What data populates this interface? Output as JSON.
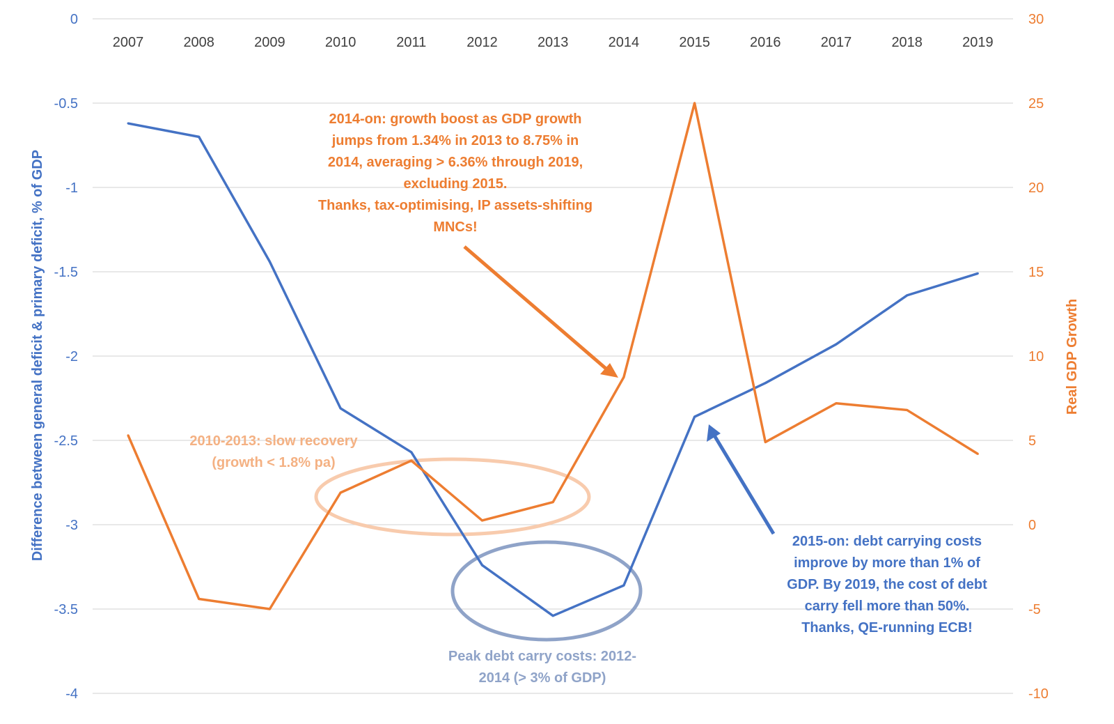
{
  "chart_data": {
    "type": "line",
    "categories": [
      "2007",
      "2008",
      "2009",
      "2010",
      "2011",
      "2012",
      "2013",
      "2014",
      "2015",
      "2016",
      "2017",
      "2018",
      "2019"
    ],
    "series": [
      {
        "axis": "left",
        "color": "#4472C4",
        "values": [
          -0.62,
          -0.7,
          -1.44,
          -2.31,
          -2.57,
          -3.24,
          -3.54,
          -3.36,
          -2.36,
          -2.16,
          -1.93,
          -1.64,
          -1.51
        ]
      },
      {
        "axis": "right",
        "color": "#ED7D31",
        "values": [
          5.3,
          -4.4,
          -5.0,
          1.9,
          3.8,
          0.25,
          1.34,
          8.75,
          25.0,
          4.9,
          7.2,
          6.8,
          4.2
        ]
      }
    ],
    "ylabel": "Difference between general deficit & primary deficit, % of GDP",
    "ylabel_right": "Real GDP Growth",
    "ylim": [
      -4,
      0
    ],
    "ylim_right": [
      -10,
      30
    ],
    "yticks": [
      "0",
      "-0.5",
      "-1",
      "-1.5",
      "-2",
      "-2.5",
      "-3",
      "-3.5",
      "-4"
    ],
    "yticks_right": [
      "30",
      "25",
      "20",
      "15",
      "10",
      "5",
      "0",
      "-5",
      "-10"
    ],
    "grid": true,
    "x_axis_position": "top",
    "annotations": {
      "growth": [
        "2014-on: growth boost as GDP growth",
        "jumps from 1.34% in 2013 to 8.75% in",
        "2014, averaging > 6.36% through 2019,",
        "excluding 2015.",
        "Thanks, tax-optimising, IP assets-shifting",
        "MNCs!"
      ],
      "slow": [
        "2010-2013: slow recovery",
        "(growth < 1.8% pa)"
      ],
      "peak": [
        "Peak debt carry costs: 2012-",
        "2014 (> 3% of GDP)"
      ],
      "debt": [
        "2015-on: debt carrying costs",
        "improve by more than 1% of",
        "GDP. By 2019, the cost of debt",
        "carry fell more than 50%.",
        "Thanks, QE-running ECB!"
      ]
    },
    "colors": {
      "blue": "#4472C4",
      "orange": "#ED7D31",
      "light_orange": "#F4B183",
      "grey_blue": "#8FA3C8",
      "grid": "#D9D9D9"
    }
  }
}
